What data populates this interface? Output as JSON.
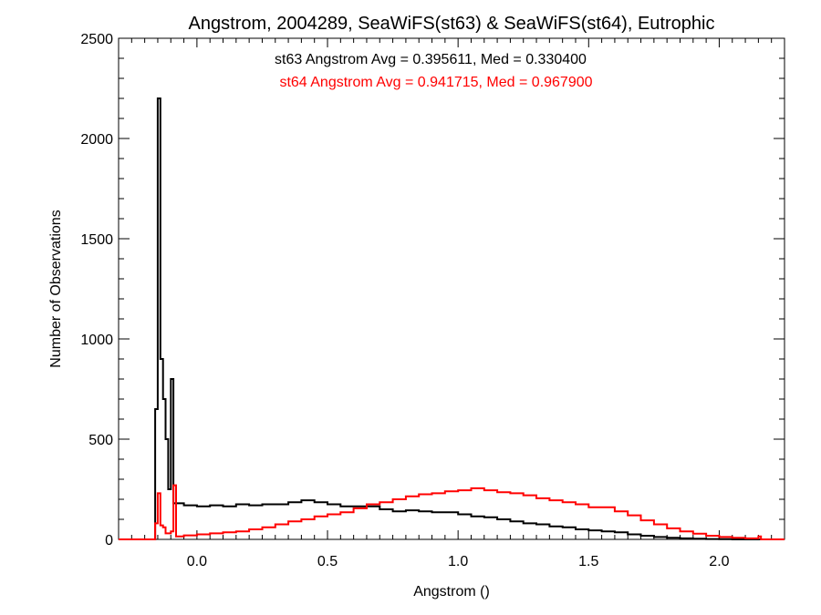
{
  "chart_data": {
    "type": "histogram-step",
    "title": "Angstrom, 2004289, SeaWiFS(st63) & SeaWiFS(st64), Eutrophic",
    "xlabel": "Angstrom ()",
    "ylabel": "Number of Observations",
    "xlim": [
      -0.3,
      2.25
    ],
    "ylim": [
      0,
      2500
    ],
    "x_ticks": [
      0.0,
      0.5,
      1.0,
      1.5,
      2.0
    ],
    "x_tick_labels": [
      "0.0",
      "0.5",
      "1.0",
      "1.5",
      "2.0"
    ],
    "y_ticks": [
      0,
      500,
      1000,
      1500,
      2000,
      2500
    ],
    "y_tick_labels": [
      "0",
      "500",
      "1000",
      "1500",
      "2000",
      "2500"
    ],
    "grid": false,
    "series": [
      {
        "label": "st63 Angstrom Avg = 0.395611, Med = 0.330400",
        "color": "#000000",
        "points": [
          [
            -0.3,
            0
          ],
          [
            -0.17,
            0
          ],
          [
            -0.16,
            650
          ],
          [
            -0.15,
            2200
          ],
          [
            -0.14,
            900
          ],
          [
            -0.13,
            700
          ],
          [
            -0.12,
            500
          ],
          [
            -0.11,
            250
          ],
          [
            -0.1,
            800
          ],
          [
            -0.09,
            180
          ],
          [
            -0.05,
            170
          ],
          [
            0.0,
            165
          ],
          [
            0.05,
            170
          ],
          [
            0.1,
            165
          ],
          [
            0.15,
            175
          ],
          [
            0.2,
            170
          ],
          [
            0.25,
            175
          ],
          [
            0.3,
            175
          ],
          [
            0.35,
            185
          ],
          [
            0.4,
            195
          ],
          [
            0.45,
            185
          ],
          [
            0.5,
            175
          ],
          [
            0.55,
            165
          ],
          [
            0.6,
            165
          ],
          [
            0.65,
            165
          ],
          [
            0.7,
            150
          ],
          [
            0.75,
            140
          ],
          [
            0.8,
            145
          ],
          [
            0.85,
            140
          ],
          [
            0.9,
            135
          ],
          [
            0.95,
            135
          ],
          [
            1.0,
            125
          ],
          [
            1.05,
            115
          ],
          [
            1.1,
            110
          ],
          [
            1.15,
            100
          ],
          [
            1.2,
            90
          ],
          [
            1.25,
            80
          ],
          [
            1.3,
            75
          ],
          [
            1.35,
            65
          ],
          [
            1.4,
            60
          ],
          [
            1.45,
            50
          ],
          [
            1.5,
            45
          ],
          [
            1.55,
            40
          ],
          [
            1.6,
            35
          ],
          [
            1.65,
            25
          ],
          [
            1.7,
            18
          ],
          [
            1.75,
            12
          ],
          [
            1.8,
            8
          ],
          [
            1.85,
            5
          ],
          [
            1.9,
            3
          ],
          [
            1.95,
            2
          ],
          [
            2.0,
            1
          ],
          [
            2.05,
            0
          ],
          [
            2.25,
            0
          ]
        ]
      },
      {
        "label": "st64 Angstrom Avg = 0.941715, Med = 0.967900",
        "color": "#ff0000",
        "points": [
          [
            -0.3,
            0
          ],
          [
            -0.17,
            0
          ],
          [
            -0.16,
            80
          ],
          [
            -0.15,
            230
          ],
          [
            -0.14,
            70
          ],
          [
            -0.13,
            60
          ],
          [
            -0.12,
            30
          ],
          [
            -0.1,
            40
          ],
          [
            -0.09,
            270
          ],
          [
            -0.08,
            15
          ],
          [
            -0.05,
            20
          ],
          [
            0.0,
            25
          ],
          [
            0.05,
            30
          ],
          [
            0.1,
            35
          ],
          [
            0.15,
            40
          ],
          [
            0.2,
            50
          ],
          [
            0.25,
            60
          ],
          [
            0.3,
            75
          ],
          [
            0.35,
            90
          ],
          [
            0.4,
            100
          ],
          [
            0.45,
            115
          ],
          [
            0.5,
            125
          ],
          [
            0.55,
            135
          ],
          [
            0.6,
            155
          ],
          [
            0.65,
            175
          ],
          [
            0.7,
            185
          ],
          [
            0.75,
            200
          ],
          [
            0.8,
            215
          ],
          [
            0.85,
            225
          ],
          [
            0.9,
            230
          ],
          [
            0.95,
            240
          ],
          [
            1.0,
            245
          ],
          [
            1.05,
            255
          ],
          [
            1.1,
            245
          ],
          [
            1.15,
            235
          ],
          [
            1.2,
            230
          ],
          [
            1.25,
            220
          ],
          [
            1.3,
            205
          ],
          [
            1.35,
            195
          ],
          [
            1.4,
            185
          ],
          [
            1.45,
            175
          ],
          [
            1.5,
            160
          ],
          [
            1.55,
            160
          ],
          [
            1.6,
            140
          ],
          [
            1.65,
            120
          ],
          [
            1.7,
            95
          ],
          [
            1.75,
            75
          ],
          [
            1.8,
            55
          ],
          [
            1.85,
            40
          ],
          [
            1.9,
            28
          ],
          [
            1.95,
            18
          ],
          [
            2.0,
            12
          ],
          [
            2.05,
            8
          ],
          [
            2.1,
            5
          ],
          [
            2.15,
            15
          ],
          [
            2.16,
            0
          ],
          [
            2.25,
            0
          ]
        ]
      }
    ]
  }
}
